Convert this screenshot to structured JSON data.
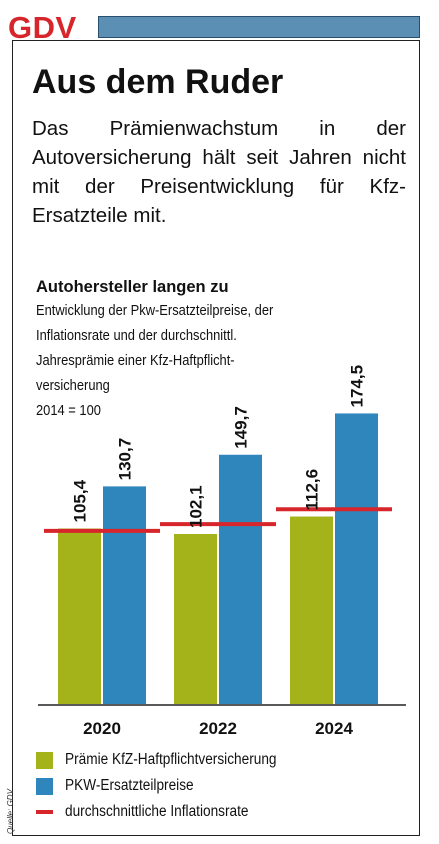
{
  "logo": "GDV",
  "headline": "Aus dem Ruder",
  "intro": "Das Prämienwachstum in der Autoversicherung hält seit Jahren nicht mit der Preisentwicklung für Kfz-Ersatzteile mit.",
  "source": "Quelle: GDV",
  "colors": {
    "brand_red": "#d7262b",
    "header_blue": "#5b8fb4"
  },
  "chart_data": {
    "type": "bar",
    "title": "Autohersteller langen zu",
    "subtitle": [
      "Entwicklung der Pkw-Ersatzteilpreise, der",
      "Inflationsrate und der durchschnittl.",
      "Jahresprämie einer Kfz-Haftpflicht-",
      "versicherung",
      "2014 = 100"
    ],
    "categories": [
      "2020",
      "2022",
      "2024"
    ],
    "series": [
      {
        "name": "Prämie KfZ-Haftpflichtversicherung",
        "values": [
          105.4,
          102.1,
          112.6
        ],
        "labels": [
          "105,4",
          "102,1",
          "112,6"
        ],
        "color": "#a5b31b"
      },
      {
        "name": "PKW-Ersatzteilpreise",
        "values": [
          130.7,
          149.7,
          174.5
        ],
        "labels": [
          "130,7",
          "149,7",
          "174,5"
        ],
        "color": "#2f86bd"
      },
      {
        "name": "durchschnittliche Inflationsrate",
        "type": "line-marker",
        "values": [
          104,
          108,
          117
        ],
        "color": "#d7262b"
      }
    ],
    "ylim": [
      0,
      180
    ],
    "grid": false,
    "legend_position": "bottom"
  }
}
